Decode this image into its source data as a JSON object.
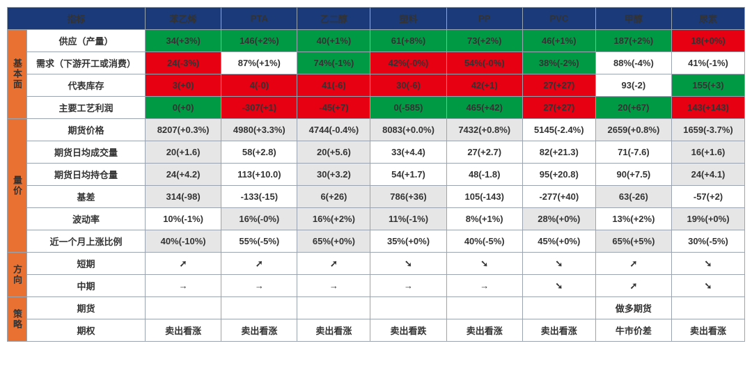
{
  "colors": {
    "header_bg": "#1a3a7a",
    "side_bg": "#e97132",
    "green_bg": "#009a44",
    "red_bg": "#e60012",
    "gray_bg": "#e6e6e6",
    "white_bg": "#ffffff",
    "txt_green": "#2e9e4f",
    "txt_red": "#e60012",
    "txt_gray": "#8a8a8a"
  },
  "header": {
    "indicator": "指标",
    "cols": [
      "苯乙烯",
      "PTA",
      "乙二醇",
      "塑料",
      "PP",
      "PVC",
      "甲醇",
      "尿素"
    ]
  },
  "groups": [
    {
      "key": "g1",
      "label": "基本面",
      "rows": [
        "r1",
        "r2",
        "r3",
        "r4"
      ]
    },
    {
      "key": "g2",
      "label": "量价",
      "rows": [
        "r5",
        "r6",
        "r7",
        "r8",
        "r9",
        "r10"
      ]
    },
    {
      "key": "g3",
      "label": "方向",
      "rows": [
        "r11",
        "r12"
      ]
    },
    {
      "key": "g4",
      "label": "策略",
      "rows": [
        "r13",
        "r14"
      ]
    }
  ],
  "rows": {
    "r1": {
      "label": "供应（产量）",
      "cells": [
        {
          "v": "34(+3%)",
          "bg": "green"
        },
        {
          "v": "146(+2%)",
          "bg": "green"
        },
        {
          "v": "40(+1%)",
          "bg": "green"
        },
        {
          "v": "61(+8%)",
          "bg": "green"
        },
        {
          "v": "73(+2%)",
          "bg": "green"
        },
        {
          "v": "46(+1%)",
          "bg": "green"
        },
        {
          "v": "187(+2%)",
          "bg": "green"
        },
        {
          "v": "18(+0%)",
          "bg": "red"
        }
      ]
    },
    "r2": {
      "label": "需求（下游开工或消费）",
      "cells": [
        {
          "v": "24(-3%)",
          "bg": "red"
        },
        {
          "v": "87%(+1%)",
          "bg": "white"
        },
        {
          "v": "74%(-1%)",
          "bg": "green"
        },
        {
          "v": "42%(-0%)",
          "bg": "red"
        },
        {
          "v": "54%(-0%)",
          "bg": "red"
        },
        {
          "v": "38%(-2%)",
          "bg": "green"
        },
        {
          "v": "88%(-4%)",
          "bg": "white"
        },
        {
          "v": "41%(-1%)",
          "bg": "white"
        }
      ]
    },
    "r3": {
      "label": "代表库存",
      "cells": [
        {
          "v": "3(+0)",
          "bg": "red"
        },
        {
          "v": "4(-0)",
          "bg": "red"
        },
        {
          "v": "41(-6)",
          "bg": "red"
        },
        {
          "v": "30(-6)",
          "bg": "red"
        },
        {
          "v": "42(+1)",
          "bg": "red"
        },
        {
          "v": "27(+27)",
          "bg": "red"
        },
        {
          "v": "93(-2)",
          "bg": "white"
        },
        {
          "v": "155(+3)",
          "bg": "green"
        }
      ]
    },
    "r4": {
      "label": "主要工艺利润",
      "cells": [
        {
          "v": "0(+0)",
          "bg": "green"
        },
        {
          "v": "-307(+1)",
          "bg": "red"
        },
        {
          "v": "-45(+7)",
          "bg": "red"
        },
        {
          "v": "0(-585)",
          "bg": "green"
        },
        {
          "v": "465(+42)",
          "bg": "green"
        },
        {
          "v": "27(+27)",
          "bg": "red"
        },
        {
          "v": "20(+67)",
          "bg": "green"
        },
        {
          "v": "143(+143)",
          "bg": "red"
        }
      ]
    },
    "r5": {
      "label": "期货价格",
      "cells": [
        {
          "v": "8207(+0.3%)",
          "bg": "gray"
        },
        {
          "v": "4980(+3.3%)",
          "bg": "gray"
        },
        {
          "v": "4744(-0.4%)",
          "bg": "gray"
        },
        {
          "v": "8083(+0.0%)",
          "bg": "gray"
        },
        {
          "v": "7432(+0.8%)",
          "bg": "gray"
        },
        {
          "v": "5145(-2.4%)",
          "bg": "white"
        },
        {
          "v": "2659(+0.8%)",
          "bg": "gray"
        },
        {
          "v": "1659(-3.7%)",
          "bg": "gray"
        }
      ]
    },
    "r6": {
      "label": "期货日均成交量",
      "cells": [
        {
          "v": "20(+1.6)",
          "bg": "gray"
        },
        {
          "v": "58(+2.8)",
          "bg": "white"
        },
        {
          "v": "20(+5.6)",
          "bg": "gray"
        },
        {
          "v": "33(+4.4)",
          "bg": "white"
        },
        {
          "v": "27(+2.7)",
          "bg": "white"
        },
        {
          "v": "82(+21.3)",
          "bg": "white"
        },
        {
          "v": "71(-7.6)",
          "bg": "white"
        },
        {
          "v": "16(+1.6)",
          "bg": "gray"
        }
      ]
    },
    "r7": {
      "label": "期货日均持仓量",
      "cells": [
        {
          "v": "24(+4.2)",
          "bg": "gray"
        },
        {
          "v": "113(+10.0)",
          "bg": "white"
        },
        {
          "v": "30(+3.2)",
          "bg": "gray"
        },
        {
          "v": "54(+1.7)",
          "bg": "white"
        },
        {
          "v": "48(-1.8)",
          "bg": "white"
        },
        {
          "v": "95(+20.8)",
          "bg": "white"
        },
        {
          "v": "90(+7.5)",
          "bg": "white"
        },
        {
          "v": "24(+4.1)",
          "bg": "gray"
        }
      ]
    },
    "r8": {
      "label": "基差",
      "cells": [
        {
          "v": "314(-98)",
          "bg": "gray"
        },
        {
          "v": "-133(-15)",
          "bg": "white"
        },
        {
          "v": "6(+26)",
          "bg": "gray"
        },
        {
          "v": "786(+36)",
          "bg": "gray"
        },
        {
          "v": "105(-143)",
          "bg": "white"
        },
        {
          "v": "-277(+40)",
          "bg": "white"
        },
        {
          "v": "63(-26)",
          "bg": "gray"
        },
        {
          "v": "-57(+2)",
          "bg": "white"
        }
      ]
    },
    "r9": {
      "label": "波动率",
      "cells": [
        {
          "v": "10%(-1%)",
          "bg": "white"
        },
        {
          "v": "16%(-0%)",
          "bg": "gray"
        },
        {
          "v": "16%(+2%)",
          "bg": "gray"
        },
        {
          "v": "11%(-1%)",
          "bg": "gray"
        },
        {
          "v": "8%(+1%)",
          "bg": "white"
        },
        {
          "v": "28%(+0%)",
          "bg": "gray"
        },
        {
          "v": "13%(+2%)",
          "bg": "white"
        },
        {
          "v": "19%(+0%)",
          "bg": "gray"
        }
      ]
    },
    "r10": {
      "label": "近一个月上涨比例",
      "cells": [
        {
          "v": "40%(-10%)",
          "bg": "gray"
        },
        {
          "v": "55%(-5%)",
          "bg": "white"
        },
        {
          "v": "65%(+0%)",
          "bg": "gray"
        },
        {
          "v": "35%(+0%)",
          "bg": "white"
        },
        {
          "v": "40%(-5%)",
          "bg": "white"
        },
        {
          "v": "45%(+0%)",
          "bg": "white"
        },
        {
          "v": "65%(+5%)",
          "bg": "gray"
        },
        {
          "v": "30%(-5%)",
          "bg": "white"
        }
      ]
    },
    "r11": {
      "label": "短期",
      "cells": [
        {
          "v": "➚",
          "bg": "white",
          "txt": "red"
        },
        {
          "v": "➚",
          "bg": "white",
          "txt": "red"
        },
        {
          "v": "➚",
          "bg": "white",
          "txt": "red"
        },
        {
          "v": "➘",
          "bg": "white",
          "txt": "green"
        },
        {
          "v": "➘",
          "bg": "white",
          "txt": "green"
        },
        {
          "v": "➘",
          "bg": "white",
          "txt": "green"
        },
        {
          "v": "➚",
          "bg": "white",
          "txt": "red"
        },
        {
          "v": "➘",
          "bg": "white",
          "txt": "green"
        }
      ]
    },
    "r12": {
      "label": "中期",
      "cells": [
        {
          "v": "→",
          "bg": "white",
          "txt": "gray"
        },
        {
          "v": "→",
          "bg": "white",
          "txt": "gray"
        },
        {
          "v": "→",
          "bg": "white",
          "txt": "gray"
        },
        {
          "v": "→",
          "bg": "white",
          "txt": "gray"
        },
        {
          "v": "→",
          "bg": "white",
          "txt": "gray"
        },
        {
          "v": "➘",
          "bg": "white",
          "txt": "green"
        },
        {
          "v": "➚",
          "bg": "white",
          "txt": "red"
        },
        {
          "v": "➘",
          "bg": "white",
          "txt": "green"
        }
      ]
    },
    "r13": {
      "label": "期货",
      "cells": [
        {
          "v": "",
          "bg": "white"
        },
        {
          "v": "",
          "bg": "white"
        },
        {
          "v": "",
          "bg": "white"
        },
        {
          "v": "",
          "bg": "white"
        },
        {
          "v": "",
          "bg": "white"
        },
        {
          "v": "",
          "bg": "white"
        },
        {
          "v": "做多期货",
          "bg": "white",
          "txt": "red"
        },
        {
          "v": "",
          "bg": "white"
        }
      ]
    },
    "r14": {
      "label": "期权",
      "cells": [
        {
          "v": "卖出看涨",
          "bg": "white",
          "txt": "green"
        },
        {
          "v": "卖出看涨",
          "bg": "white",
          "txt": "green"
        },
        {
          "v": "卖出看涨",
          "bg": "white",
          "txt": "green"
        },
        {
          "v": "卖出看跌",
          "bg": "white",
          "txt": "red"
        },
        {
          "v": "卖出看涨",
          "bg": "white",
          "txt": "green"
        },
        {
          "v": "卖出看涨",
          "bg": "white",
          "txt": "green"
        },
        {
          "v": "牛市价差",
          "bg": "white",
          "txt": "red"
        },
        {
          "v": "卖出看涨",
          "bg": "white",
          "txt": "green"
        }
      ]
    }
  }
}
